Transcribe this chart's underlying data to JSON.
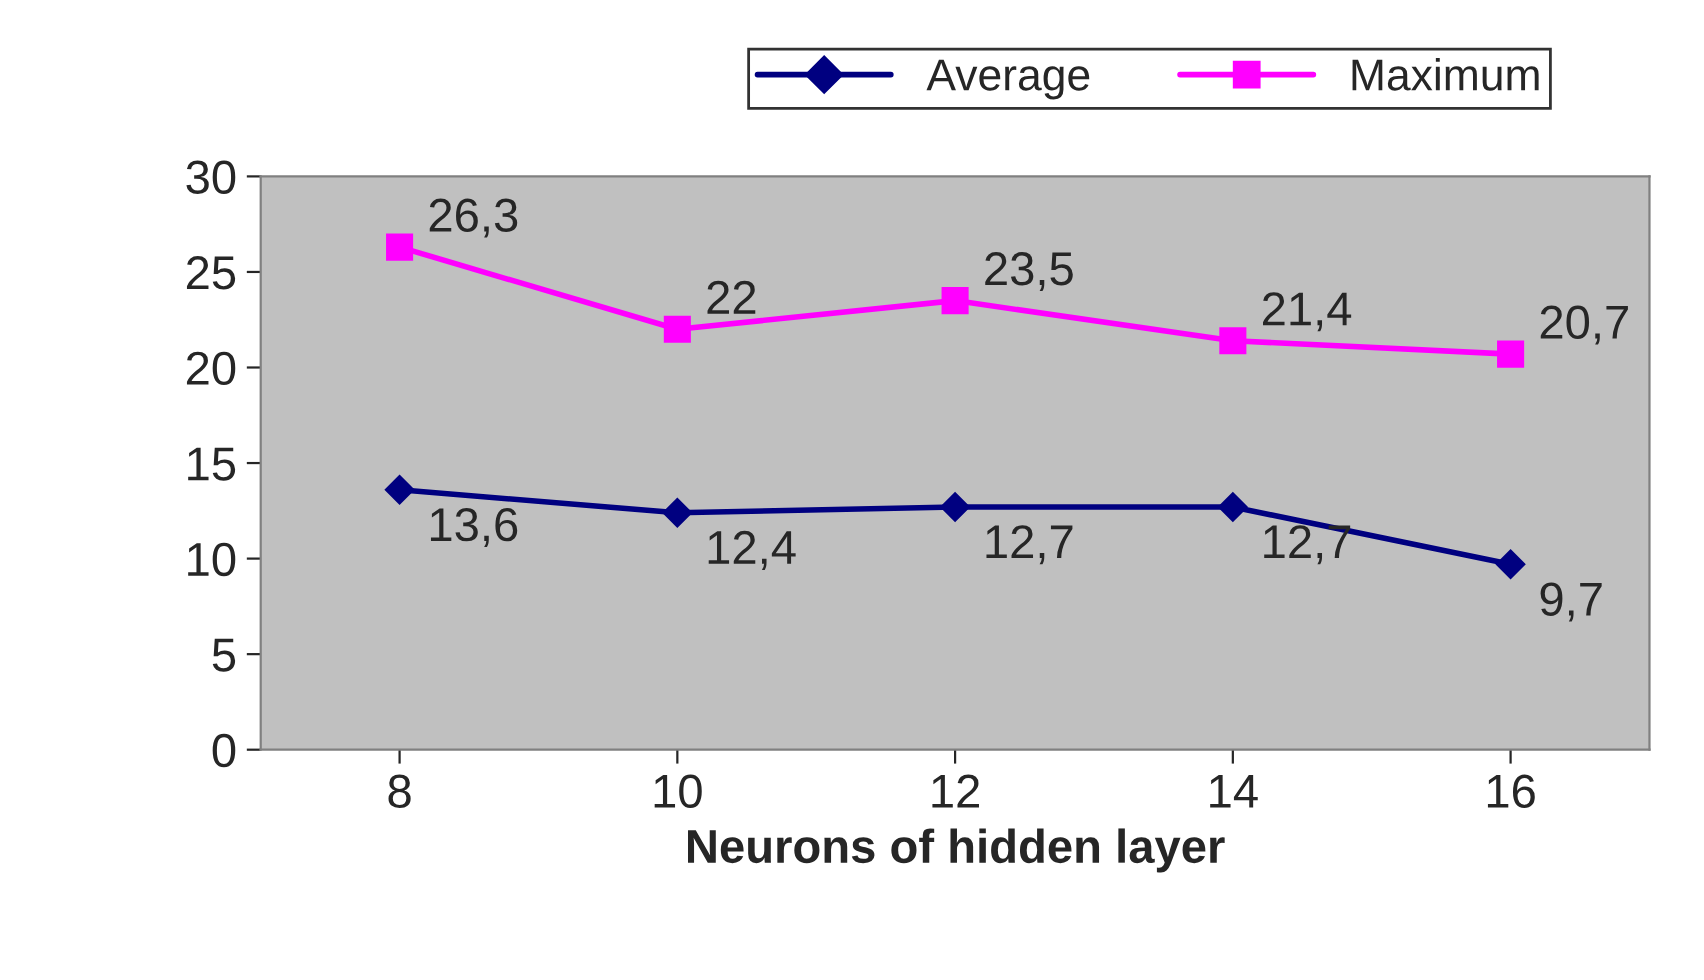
{
  "chart_data": {
    "type": "line",
    "xlabel": "Neurons of hidden layer",
    "categories": [
      "8",
      "10",
      "12",
      "14",
      "16"
    ],
    "series": [
      {
        "name": "Average",
        "color": "#000080",
        "marker": "diamond",
        "values": [
          13.6,
          12.4,
          12.7,
          12.7,
          9.7
        ],
        "value_labels": [
          "13,6",
          "12,4",
          "12,7",
          "12,7",
          "9,7"
        ]
      },
      {
        "name": "Maximum",
        "color": "#ff00ff",
        "marker": "square",
        "values": [
          26.3,
          22,
          23.5,
          21.4,
          20.7
        ],
        "value_labels": [
          "26,3",
          "22",
          "23,5",
          "21,4",
          "20,7"
        ]
      }
    ],
    "ylim": [
      0,
      30
    ],
    "yticks": [
      0,
      5,
      10,
      15,
      20,
      25,
      30
    ],
    "grid": false,
    "legend": "top",
    "line_style": "solid"
  }
}
